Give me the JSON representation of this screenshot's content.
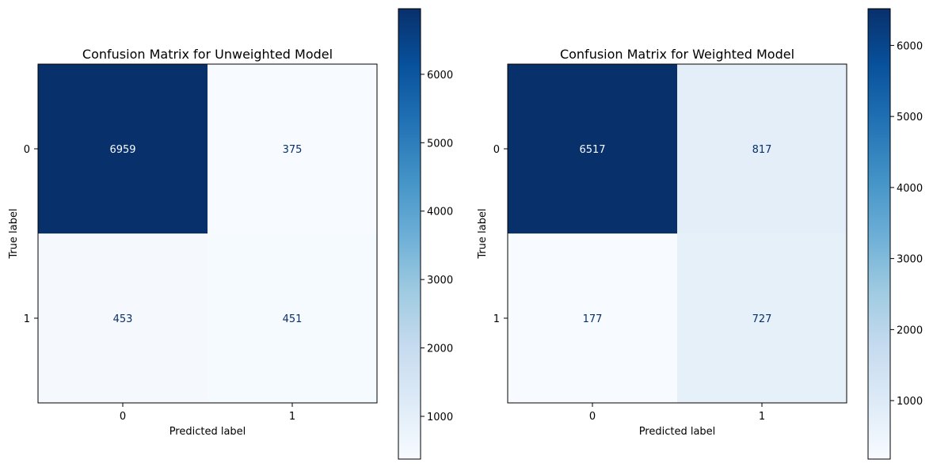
{
  "chart_data": [
    {
      "type": "heatmap",
      "title": "Confusion Matrix for Unweighted Model",
      "xlabel": "Predicted label",
      "ylabel": "True label",
      "x_categories": [
        "0",
        "1"
      ],
      "y_categories": [
        "0",
        "1"
      ],
      "values": [
        [
          6959,
          375
        ],
        [
          453,
          451
        ]
      ],
      "colormap": "Blues",
      "colorbar": {
        "min": 375,
        "max": 6959,
        "ticks": [
          1000,
          2000,
          3000,
          4000,
          5000,
          6000
        ],
        "tick_labels": [
          "1000",
          "2000",
          "3000",
          "4000",
          "5000",
          "6000"
        ]
      }
    },
    {
      "type": "heatmap",
      "title": "Confusion Matrix for Weighted Model",
      "xlabel": "Predicted label",
      "ylabel": "True label",
      "x_categories": [
        "0",
        "1"
      ],
      "y_categories": [
        "0",
        "1"
      ],
      "values": [
        [
          6517,
          817
        ],
        [
          177,
          727
        ]
      ],
      "colormap": "Blues",
      "colorbar": {
        "min": 177,
        "max": 6517,
        "ticks": [
          1000,
          2000,
          3000,
          4000,
          5000,
          6000
        ],
        "tick_labels": [
          "1000",
          "2000",
          "3000",
          "4000",
          "5000",
          "6000"
        ]
      }
    }
  ],
  "colors": {
    "blues_light": "#f7fbff",
    "blues_dark": "#08306b",
    "text_on_dark": "#f7fbff",
    "text_on_light": "#08306b",
    "axes": "#000000"
  }
}
